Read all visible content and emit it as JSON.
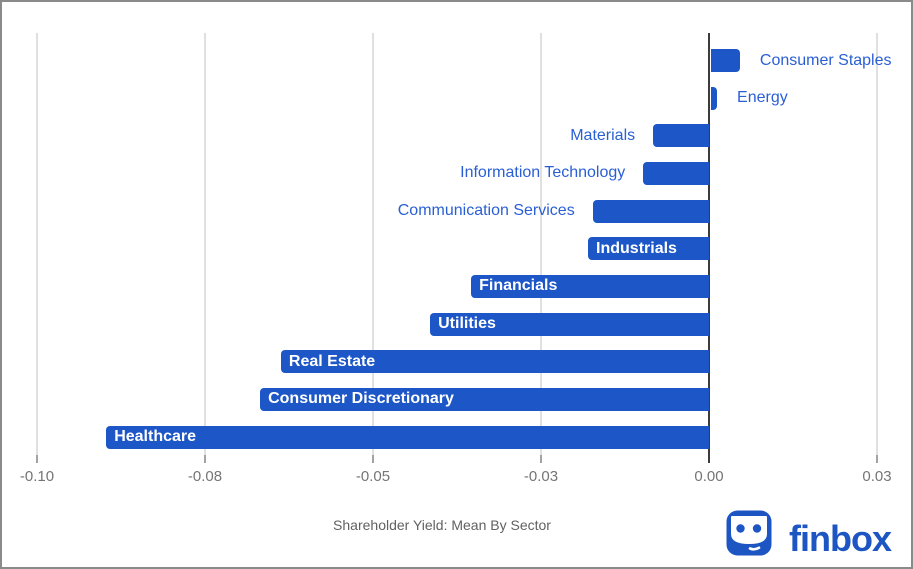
{
  "chart_data": {
    "type": "bar",
    "orientation": "horizontal",
    "title": "Shareholder Yield: Mean By Sector",
    "categories": [
      "Consumer Staples",
      "Energy",
      "Materials",
      "Information Technology",
      "Communication Services",
      "Industrials",
      "Financials",
      "Utilities",
      "Real Estate",
      "Consumer Discretionary",
      "Healthcare"
    ],
    "values": [
      0.0043,
      0.0009,
      -0.0083,
      -0.0098,
      -0.0173,
      -0.018,
      -0.0354,
      -0.0415,
      -0.0637,
      -0.0668,
      -0.0897
    ],
    "xlim": [
      -0.1,
      0.0305
    ],
    "x_ticks": {
      "values": [
        -0.1,
        -0.075,
        -0.05,
        -0.025,
        0,
        0.025
      ],
      "labels": [
        "-0.10",
        "-0.08",
        "-0.05",
        "-0.03",
        "0.00",
        "0.03"
      ]
    },
    "grid": true,
    "legend": "none",
    "bar_label_placement": "inside-if-fits-else-outside"
  },
  "branding": {
    "wordmark": "finbox",
    "icon": "finbox-robot-icon"
  },
  "colors": {
    "bar": "#1d56c7",
    "label_outside": "#2a5fd4",
    "label_inside": "#ffffff",
    "gridline": "#e0e0e0",
    "axis_tick": "#a3a3a3",
    "zero_line": "#3c3c3c",
    "tick_label": "#757575",
    "axis_title": "#616161",
    "brand_blue": "#1d55c2",
    "frame_border": "#8a8a8a",
    "background": "#ffffff"
  }
}
